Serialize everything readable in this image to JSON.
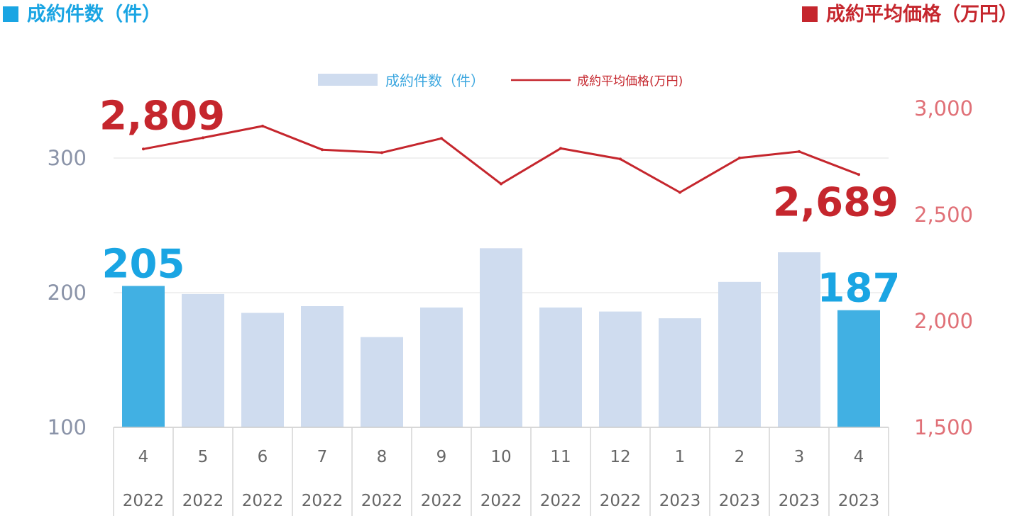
{
  "header": {
    "left_title": "成約件数（件）",
    "right_title": "成約平均価格（万円）",
    "left_color": "#1aa5e3",
    "right_color": "#c5262d"
  },
  "chart_data": {
    "type": "bar+line",
    "categories": [
      "4",
      "5",
      "6",
      "7",
      "8",
      "9",
      "10",
      "11",
      "12",
      "1",
      "2",
      "3",
      "4"
    ],
    "years": [
      "2022",
      "2022",
      "2022",
      "2022",
      "2022",
      "2022",
      "2022",
      "2022",
      "2022",
      "2023",
      "2023",
      "2023",
      "2023"
    ],
    "series": [
      {
        "name": "成約件数（件）",
        "type": "bar",
        "axis": "left",
        "values": [
          205,
          199,
          185,
          190,
          167,
          189,
          233,
          189,
          186,
          181,
          208,
          230,
          187
        ],
        "color": "#cfdcef",
        "highlight_color": "#41b0e3",
        "highlight_indices": [
          0,
          12
        ]
      },
      {
        "name": "成約平均価格(万円)",
        "type": "line",
        "axis": "right",
        "values": [
          2809,
          2862,
          2917,
          2806,
          2792,
          2859,
          2645,
          2812,
          2762,
          2605,
          2767,
          2797,
          2689
        ],
        "color": "#c5262d"
      }
    ],
    "left_axis": {
      "min": 100,
      "max": 340,
      "ticks": [
        "100",
        "200",
        "300"
      ],
      "tick_values": [
        100,
        200,
        300
      ]
    },
    "right_axis": {
      "min": 1500,
      "max": 3000,
      "ticks": [
        "1,500",
        "2,000",
        "2,500",
        "3,000"
      ],
      "tick_values": [
        1500,
        2000,
        2500,
        3000
      ]
    },
    "callouts": {
      "first_bar": "205",
      "last_bar": "187",
      "first_line": "2,809",
      "last_line": "2,689"
    },
    "legend_position": "top-center",
    "grid": true
  }
}
